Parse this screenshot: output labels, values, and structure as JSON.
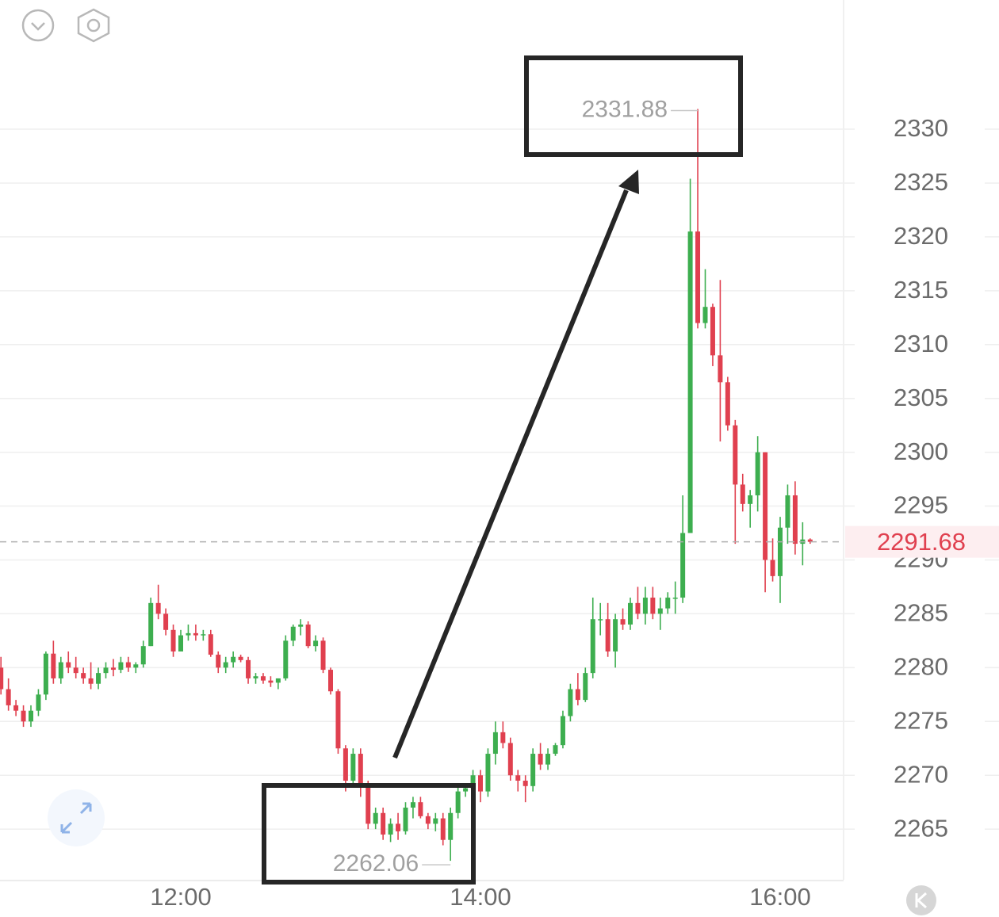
{
  "chart_data": {
    "type": "candlestick",
    "categories": [
      null,
      null,
      null,
      null,
      null,
      null,
      null,
      null,
      null,
      null,
      null,
      null,
      null,
      null,
      null,
      null,
      null,
      null,
      null,
      null,
      null,
      null,
      null,
      null,
      "12:00",
      null,
      null,
      null,
      null,
      null,
      null,
      null,
      null,
      null,
      null,
      null,
      null,
      null,
      null,
      null,
      null,
      null,
      null,
      null,
      null,
      null,
      null,
      null,
      null,
      null,
      null,
      null,
      null,
      null,
      null,
      null,
      null,
      null,
      null,
      null,
      null,
      null,
      null,
      null,
      "14:00",
      null,
      null,
      null,
      null,
      null,
      null,
      null,
      null,
      null,
      null,
      null,
      null,
      null,
      null,
      null,
      null,
      null,
      null,
      null,
      null,
      null,
      null,
      null,
      null,
      null,
      null,
      null,
      null,
      null,
      null,
      null,
      null,
      null,
      null,
      null,
      null,
      null,
      null,
      null,
      "16:00",
      null,
      null,
      null,
      null
    ],
    "open": [
      2280,
      2278,
      2276.5,
      2276,
      2275,
      2276,
      2277.5,
      2281.3,
      2279,
      2280.5,
      2280,
      2279.5,
      2279,
      2278.5,
      2279.5,
      2280,
      2279.8,
      2280.5,
      2280,
      2280.3,
      2282,
      2286,
      2285,
      2283.5,
      2281.5,
      2283,
      2283.2,
      2283,
      2283.1,
      2281.2,
      2280,
      2280.5,
      2281,
      2280.7,
      2279,
      2279.2,
      2278.8,
      2278.6,
      2279,
      2282.5,
      2283.8,
      2284,
      2282,
      2282.5,
      2279.8,
      2277.8,
      2272.5,
      2269.5,
      2272,
      2269,
      2265.5,
      2266.5,
      2264.5,
      2265.5,
      2264.8,
      2267,
      2267.5,
      2266.2,
      2265.5,
      2266,
      2264,
      2266.5,
      2268.5,
      2268.8,
      2270,
      2268.5,
      2272,
      2274,
      2273,
      2270,
      2269.5,
      2269,
      2272,
      2271,
      2272,
      2272.8,
      2275.5,
      2278,
      2277,
      2279.5,
      2284.5,
      2284.5,
      2281.5,
      2284.5,
      2284,
      2286,
      2285,
      2286.5,
      2285,
      2285.5,
      2286.5,
      2286.5,
      2292.5,
      2320.5,
      2312,
      2313.5,
      2309,
      2306.5,
      2302.5,
      2297,
      2295.2,
      2296,
      2300,
      2290,
      2288.5,
      2293,
      2296,
      2291.5,
      2291.9
    ],
    "high": [
      2281,
      2279,
      2277,
      2276.5,
      2276.5,
      2278,
      2281.5,
      2282.5,
      2281,
      2281.5,
      2281,
      2280,
      2280.5,
      2280,
      2280.5,
      2280.8,
      2281,
      2281,
      2280.5,
      2282.5,
      2286.5,
      2287.7,
      2285.5,
      2284,
      2283.5,
      2284,
      2284,
      2283.5,
      2283.5,
      2281.5,
      2281,
      2281.5,
      2281.2,
      2281,
      2279.5,
      2279.5,
      2279.2,
      2279,
      2283,
      2284,
      2284.5,
      2284.3,
      2283,
      2282.8,
      2280,
      2278,
      2272.8,
      2272.5,
      2272.5,
      2269.5,
      2267,
      2267,
      2266,
      2266.5,
      2267.5,
      2268,
      2268,
      2266.5,
      2266.5,
      2266.5,
      2267,
      2269,
      2269.2,
      2270.5,
      2270.5,
      2272.5,
      2275,
      2275,
      2273.5,
      2270.5,
      2270,
      2272.5,
      2273,
      2272.5,
      2273,
      2276,
      2278.5,
      2279.5,
      2280,
      2286.5,
      2286,
      2286,
      2285,
      2285.5,
      2286.5,
      2287.5,
      2287.5,
      2287.5,
      2286.5,
      2287,
      2288,
      2296,
      2325.4,
      2331.88,
      2317,
      2313.8,
      2316,
      2307,
      2303,
      2298,
      2296.5,
      2301.5,
      2300,
      2292,
      2294,
      2297,
      2297.3,
      2293.5,
      2292
    ],
    "low": [
      2277.5,
      2276,
      2275.5,
      2274.5,
      2274.5,
      2275.5,
      2277,
      2278.5,
      2278.5,
      2279.5,
      2279,
      2278.5,
      2278,
      2278,
      2279,
      2279.2,
      2279.5,
      2279.6,
      2279.5,
      2280,
      2282,
      2284.5,
      2283,
      2281,
      2281.5,
      2282.5,
      2282.5,
      2282.5,
      2281,
      2279.5,
      2279.5,
      2280,
      2280.5,
      2278.5,
      2278.5,
      2278.5,
      2278.2,
      2278,
      2278.8,
      2282,
      2283,
      2281.8,
      2281.5,
      2279.5,
      2277.5,
      2272,
      2268.5,
      2269,
      2268,
      2265,
      2265,
      2264,
      2263.8,
      2264,
      2264.5,
      2266,
      2266,
      2265,
      2264.8,
      2263.5,
      2262.06,
      2266,
      2268,
      2268.5,
      2267.5,
      2268,
      2271,
      2272.5,
      2269.5,
      2268.5,
      2267.5,
      2268.5,
      2270.5,
      2270.5,
      2271.8,
      2272.5,
      2275,
      2276.5,
      2276.8,
      2279,
      2283,
      2281,
      2280,
      2283.5,
      2283.5,
      2284.5,
      2284,
      2284.5,
      2283.5,
      2285,
      2285,
      2286,
      2292.5,
      2311.5,
      2311.5,
      2308,
      2301,
      2302,
      2291.5,
      2294.5,
      2293,
      2294.5,
      2287,
      2288,
      2286,
      2291.5,
      2290.5,
      2289.5,
      2291.5
    ],
    "close": [
      2278,
      2276.5,
      2276,
      2275,
      2276,
      2277.5,
      2281.3,
      2279,
      2280.5,
      2280,
      2279.5,
      2279,
      2278.5,
      2279.5,
      2280,
      2279.8,
      2280.5,
      2280,
      2280.3,
      2282,
      2286,
      2285,
      2283.5,
      2281.5,
      2283,
      2283.2,
      2283,
      2283.1,
      2281.2,
      2280,
      2280.5,
      2281,
      2280.7,
      2279,
      2279.2,
      2278.8,
      2278.6,
      2279,
      2282.5,
      2283.8,
      2284,
      2282,
      2282.5,
      2279.8,
      2277.8,
      2272.5,
      2269.5,
      2272,
      2269,
      2265.5,
      2266.5,
      2264.5,
      2265.5,
      2264.8,
      2267,
      2267.5,
      2266.2,
      2265.5,
      2266,
      2264,
      2266.5,
      2268.5,
      2268.8,
      2270,
      2268.5,
      2272,
      2274,
      2273,
      2270,
      2269.5,
      2269,
      2272,
      2271,
      2272,
      2272.8,
      2275.5,
      2278,
      2277,
      2279.5,
      2284.5,
      2284.5,
      2281.5,
      2284.5,
      2284,
      2286,
      2285,
      2286.5,
      2285,
      2285.5,
      2286.5,
      2286.5,
      2292.5,
      2320.5,
      2312,
      2313.5,
      2309,
      2306.5,
      2302.5,
      2297,
      2295.2,
      2296,
      2300,
      2290,
      2288.5,
      2293,
      2296,
      2291.5,
      2291.9,
      2291.68
    ],
    "up_color": "#3dae4f",
    "down_color": "#e0404f",
    "ylim": [
      2260.3,
      2342
    ],
    "yticks": [
      2265,
      2270,
      2275,
      2280,
      2285,
      2290,
      2295,
      2300,
      2305,
      2310,
      2315,
      2320,
      2325,
      2330
    ],
    "grid": true
  }
}
